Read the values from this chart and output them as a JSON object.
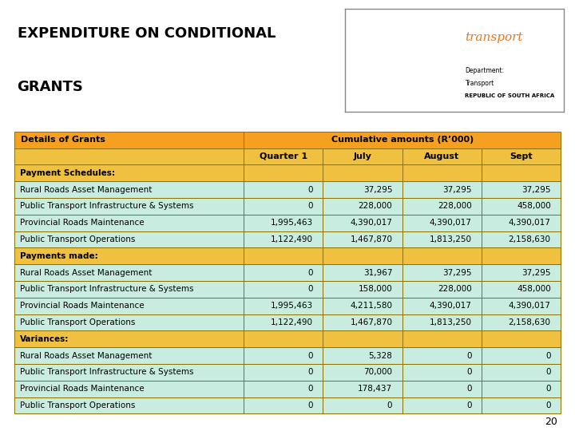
{
  "title_line1": "EXPENDITURE ON CONDITIONAL",
  "title_line2": "GRANTS",
  "title_bg": "#f5d5a0",
  "header_bg": "#f5a020",
  "col_header_bg": "#f0c040",
  "section_bg": "#f0c040",
  "data_bg": "#c8ede0",
  "border_color": "#8b7000",
  "col_headers": [
    "Details of Grants",
    "Quarter 1",
    "July",
    "August",
    "Sept"
  ],
  "merged_header": "Cumulative amounts (R’000)",
  "rows": [
    {
      "label": "Payment Schedules:",
      "is_section": true,
      "values": [
        "",
        "",
        "",
        ""
      ]
    },
    {
      "label": "Rural Roads Asset Management",
      "is_section": false,
      "values": [
        "0",
        "37,295",
        "37,295",
        "37,295"
      ]
    },
    {
      "label": "Public Transport Infrastructure & Systems",
      "is_section": false,
      "values": [
        "0",
        "228,000",
        "228,000",
        "458,000"
      ]
    },
    {
      "label": "Provincial Roads Maintenance",
      "is_section": false,
      "values": [
        "1,995,463",
        "4,390,017",
        "4,390,017",
        "4,390,017"
      ]
    },
    {
      "label": "Public Transport Operations",
      "is_section": false,
      "values": [
        "1,122,490",
        "1,467,870",
        "1,813,250",
        "2,158,630"
      ]
    },
    {
      "label": "Payments made:",
      "is_section": true,
      "values": [
        "",
        "",
        "",
        ""
      ]
    },
    {
      "label": "Rural Roads Asset Management",
      "is_section": false,
      "values": [
        "0",
        "31,967",
        "37,295",
        "37,295"
      ]
    },
    {
      "label": "Public Transport Infrastructure & Systems",
      "is_section": false,
      "values": [
        "0",
        "158,000",
        "228,000",
        "458,000"
      ]
    },
    {
      "label": "Provincial Roads Maintenance",
      "is_section": false,
      "values": [
        "1,995,463",
        "4,211,580",
        "4,390,017",
        "4,390,017"
      ]
    },
    {
      "label": "Public Transport Operations",
      "is_section": false,
      "values": [
        "1,122,490",
        "1,467,870",
        "1,813,250",
        "2,158,630"
      ]
    },
    {
      "label": "Variances:",
      "is_section": true,
      "values": [
        "",
        "",
        "",
        ""
      ]
    },
    {
      "label": "Rural Roads Asset Management",
      "is_section": false,
      "values": [
        "0",
        "5,328",
        "0",
        "0"
      ]
    },
    {
      "label": "Public Transport Infrastructure & Systems",
      "is_section": false,
      "values": [
        "0",
        "70,000",
        "0",
        "0"
      ]
    },
    {
      "label": "Provincial Roads Maintenance",
      "is_section": false,
      "values": [
        "0",
        "178,437",
        "0",
        "0"
      ]
    },
    {
      "label": "Public Transport Operations",
      "is_section": false,
      "values": [
        "0",
        "0",
        "0",
        "0"
      ]
    }
  ],
  "page_number": "20",
  "bg_color": "#ffffff",
  "title_fontsize": 13,
  "header_fontsize": 8,
  "data_fontsize": 7.5
}
